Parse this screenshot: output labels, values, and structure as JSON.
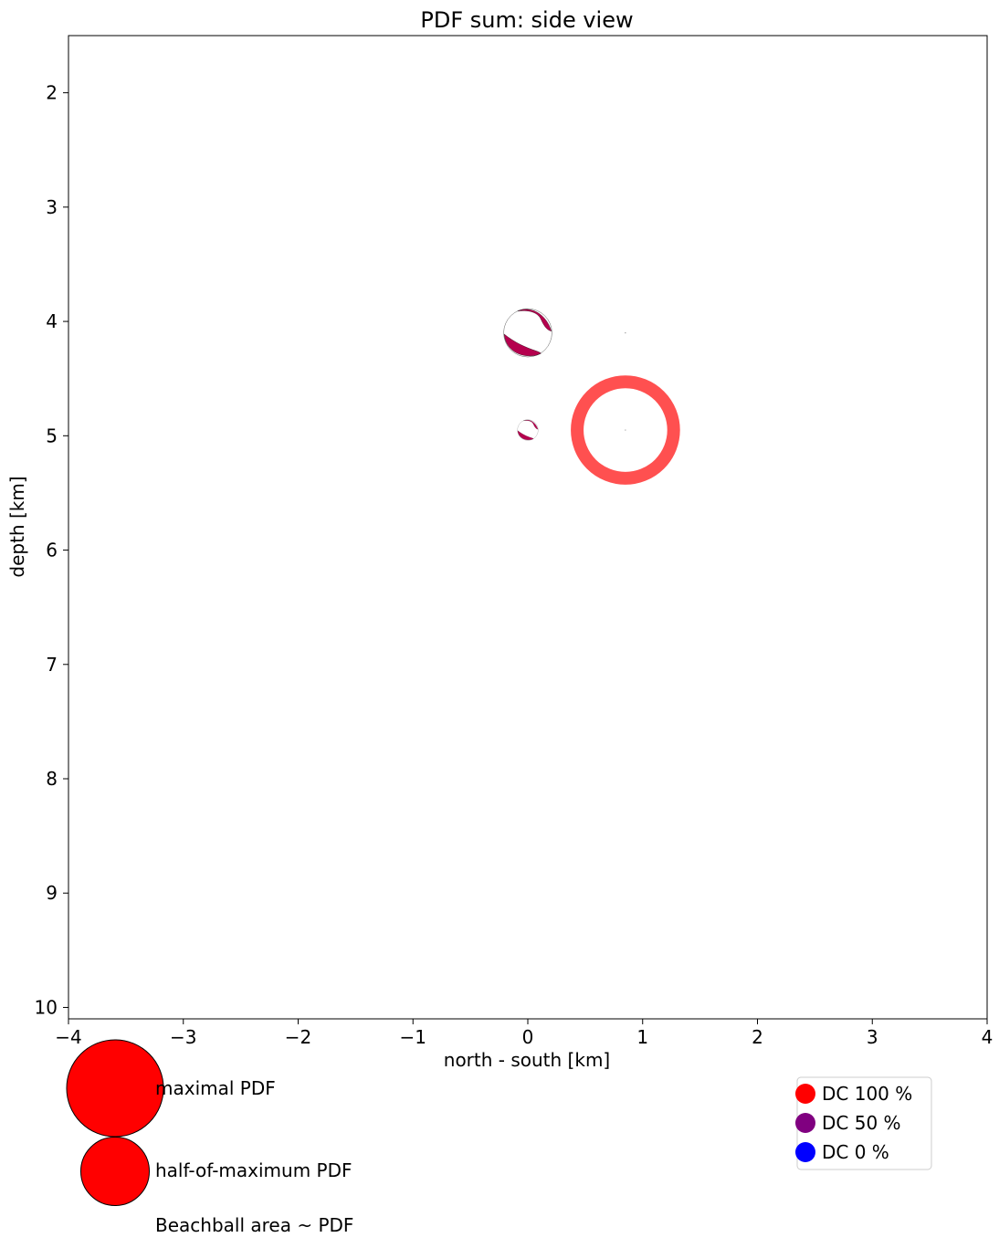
{
  "chart_data": {
    "type": "scatter",
    "title": "PDF sum: side view",
    "xlabel": "north - south [km]",
    "ylabel": "depth [km]",
    "xlim": [
      -4,
      4
    ],
    "ylim": [
      10.1,
      1.5
    ],
    "y_inverted": true,
    "grid": false,
    "xticks": [
      -4,
      -3,
      -2,
      -1,
      0,
      1,
      2,
      3,
      4
    ],
    "xtick_labels": [
      "−4",
      "−3",
      "−2",
      "−1",
      "0",
      "1",
      "2",
      "3",
      "4"
    ],
    "yticks": [
      2,
      3,
      4,
      5,
      6,
      7,
      8,
      9,
      10
    ],
    "ytick_labels": [
      "2",
      "3",
      "4",
      "5",
      "6",
      "7",
      "8",
      "9",
      "10"
    ],
    "beachballs": [
      {
        "x": 0.0,
        "y": 4.1,
        "size": 0.42,
        "dc_percent": 80,
        "color": "#b5004e"
      },
      {
        "x": 0.0,
        "y": 4.95,
        "size": 0.18,
        "dc_percent": 80,
        "color": "#b5004e"
      }
    ],
    "reference_marks": [
      {
        "x": 0.85,
        "y": 4.95,
        "radius": 0.42,
        "color": "#ff5050",
        "style": "ring"
      },
      {
        "x": 0.85,
        "y": 4.1,
        "style": "tiny-point"
      }
    ]
  },
  "size_legend": {
    "items": [
      {
        "label": "maximal PDF",
        "color": "#ff0000",
        "scale": 1.0
      },
      {
        "label": "half-of-maximum PDF",
        "color": "#ff0000",
        "scale": 0.5
      }
    ],
    "caption": "Beachball area ~ PDF"
  },
  "dc_legend": {
    "items": [
      {
        "label": "DC 100 %",
        "color": "#ff0000"
      },
      {
        "label": "DC 50 %",
        "color": "#800080"
      },
      {
        "label": "DC 0 %",
        "color": "#0000ff"
      }
    ]
  }
}
